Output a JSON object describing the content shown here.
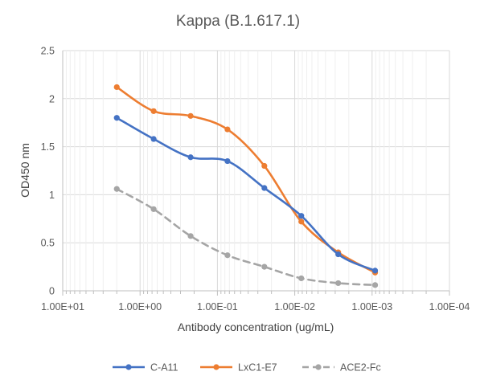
{
  "chart_data": {
    "type": "line",
    "title": "Kappa (B.1.617.1)",
    "xlabel": "Antibody concentration (ug/mL)",
    "ylabel": "OD450 nm",
    "x_scale": "log",
    "x_reversed": true,
    "xlim": [
      10,
      0.0001
    ],
    "ylim": [
      0,
      2.5
    ],
    "x_ticks": [
      10,
      1,
      0.1,
      0.01,
      0.001,
      0.0001
    ],
    "x_tick_labels": [
      "1.00E+01",
      "1.00E+00",
      "1.00E-01",
      "1.00E-02",
      "1.00E-03",
      "1.00E-04"
    ],
    "y_ticks": [
      0,
      0.5,
      1,
      1.5,
      2,
      2.5
    ],
    "y_tick_labels": [
      "0",
      "0.5",
      "1",
      "1.5",
      "2",
      "2.5"
    ],
    "grid": "major and minor vertical lines, major horizontal lines",
    "legend_position": "bottom",
    "x": [
      2,
      0.667,
      0.222,
      0.0741,
      0.0247,
      0.00823,
      0.00274,
      0.000914
    ],
    "series": [
      {
        "name": "C-A11",
        "color": "#4472C4",
        "line_style": "solid",
        "values": [
          1.8,
          1.58,
          1.39,
          1.35,
          1.07,
          0.78,
          0.38,
          0.21
        ]
      },
      {
        "name": "LxC1-E7",
        "color": "#ED7D31",
        "line_style": "solid",
        "values": [
          2.12,
          1.87,
          1.82,
          1.68,
          1.3,
          0.72,
          0.4,
          0.19
        ]
      },
      {
        "name": "ACE2-Fc",
        "color": "#A5A5A5",
        "line_style": "dashed",
        "values": [
          1.06,
          0.85,
          0.57,
          0.37,
          0.25,
          0.13,
          0.08,
          0.06
        ]
      }
    ]
  }
}
